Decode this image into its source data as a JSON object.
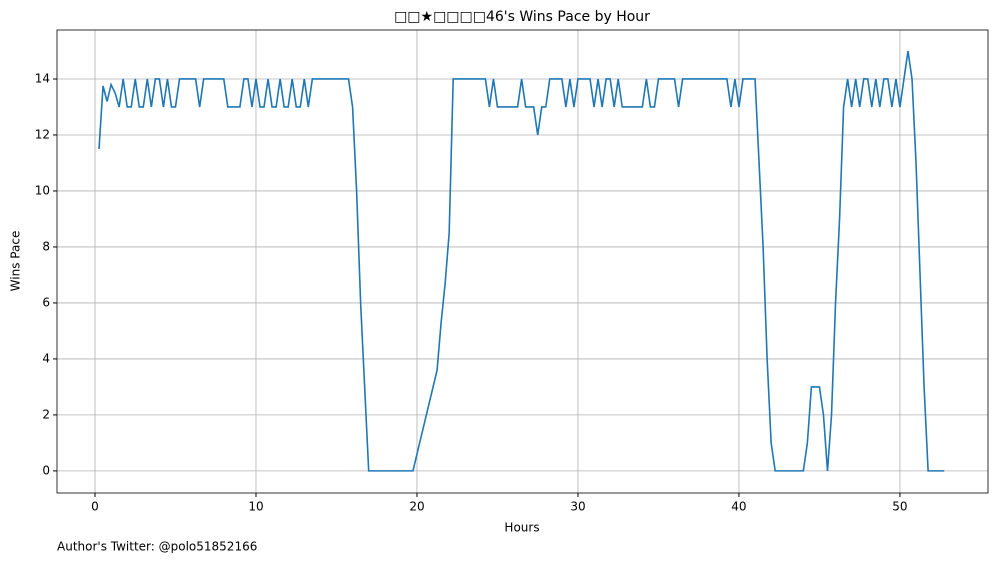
{
  "chart_data": {
    "type": "line",
    "title": "□□★□□□□46's Wins Pace by Hour",
    "xlabel": "Hours",
    "ylabel": "Wins Pace",
    "annotation": "Author's Twitter: @polo51852166",
    "color": "#1f77b4",
    "grid": true,
    "xlim": [
      -2.36,
      55.47
    ],
    "ylim": [
      -0.79,
      15.75
    ],
    "xticks": [
      0,
      10,
      20,
      30,
      40,
      50
    ],
    "yticks": [
      0,
      2,
      4,
      6,
      8,
      10,
      12,
      14
    ],
    "x": [
      0.25,
      0.5,
      0.75,
      1,
      1.25,
      1.5,
      1.75,
      2,
      2.25,
      2.5,
      2.75,
      3,
      3.25,
      3.5,
      3.75,
      4,
      4.25,
      4.5,
      4.75,
      5,
      5.25,
      6.25,
      6.5,
      6.75,
      8,
      8.25,
      9,
      9.25,
      9.5,
      9.75,
      10,
      10.25,
      10.5,
      10.75,
      11,
      11.25,
      11.5,
      11.75,
      12,
      12.25,
      12.5,
      12.75,
      13,
      13.25,
      13.5,
      15.75,
      16,
      16.25,
      16.5,
      16.75,
      17,
      19.75,
      21.25,
      21.5,
      21.75,
      22,
      22.25,
      24.25,
      24.5,
      24.75,
      25,
      26.25,
      26.5,
      26.75,
      27.25,
      27.5,
      27.75,
      28,
      28.25,
      29,
      29.25,
      29.5,
      29.75,
      30,
      30.75,
      31,
      31.25,
      31.5,
      31.75,
      32,
      32.25,
      32.5,
      32.75,
      34,
      34.25,
      34.5,
      34.75,
      35,
      36,
      36.25,
      36.5,
      39.25,
      39.5,
      39.75,
      40,
      40.25,
      41,
      41.25,
      41.5,
      41.75,
      42,
      42.25,
      44,
      44.25,
      44.5,
      45,
      45.25,
      45.5,
      45.75,
      46,
      46.25,
      46.5,
      46.75,
      47,
      47.25,
      47.5,
      47.75,
      48,
      48.25,
      48.5,
      48.75,
      49,
      49.25,
      49.5,
      49.75,
      50,
      50.25,
      50.5,
      50.75,
      51,
      51.25,
      51.5,
      51.75,
      52.75
    ],
    "values": [
      11.5,
      13.75,
      13.2,
      13.8,
      13.5,
      13,
      14,
      13,
      13,
      14,
      13,
      13,
      14,
      13,
      14,
      14,
      13,
      14,
      13,
      13,
      14,
      14,
      13,
      14,
      14,
      13,
      13,
      14,
      14,
      13,
      14,
      13,
      13,
      14,
      13,
      13,
      14,
      13,
      13,
      14,
      13,
      13,
      14,
      13,
      14,
      14,
      13,
      10,
      6,
      3,
      0,
      0,
      3.6,
      5.3,
      6.7,
      8.5,
      14,
      14,
      13,
      14,
      13,
      13,
      14,
      13,
      13,
      12,
      13,
      13,
      14,
      14,
      13,
      14,
      13,
      14,
      14,
      13,
      14,
      13,
      14,
      14,
      13,
      14,
      13,
      13,
      14,
      13,
      13,
      14,
      14,
      13,
      14,
      14,
      13,
      14,
      13,
      14,
      14,
      11,
      8,
      4,
      1,
      0,
      0,
      1,
      3,
      3,
      2,
      0,
      2,
      6,
      9,
      13,
      14,
      13,
      14,
      13,
      14,
      14,
      13,
      14,
      13,
      14,
      14,
      13,
      14,
      13,
      14,
      15,
      14,
      11,
      7,
      3,
      0,
      0
    ]
  }
}
